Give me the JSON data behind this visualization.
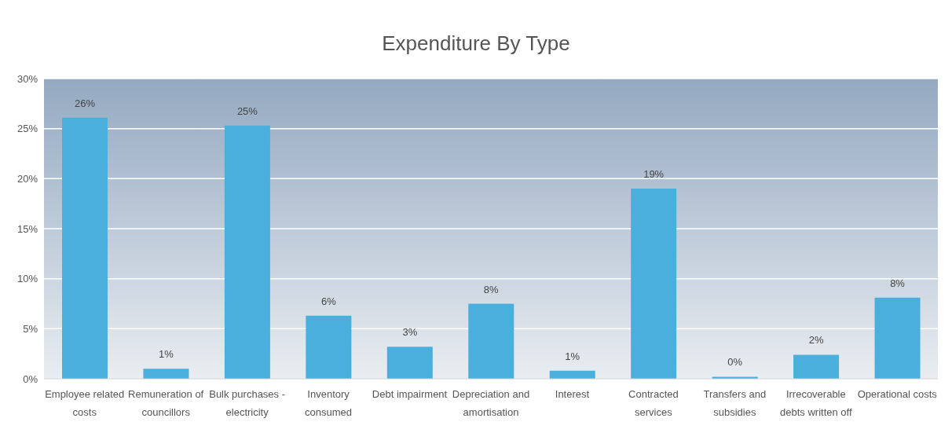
{
  "chart_data": {
    "type": "bar",
    "title": "Expenditure By Type",
    "categories": [
      "Employee related costs",
      "Remuneration of councillors",
      "Bulk purchases - electricity",
      "Inventory consumed",
      "Debt impairment",
      "Depreciation and amortisation",
      "Interest",
      "Contracted services",
      "Transfers and subsidies",
      "Irrecoverable debts written off",
      "Operational costs"
    ],
    "values": [
      26.1,
      1.0,
      25.3,
      6.3,
      3.2,
      7.5,
      0.8,
      19.0,
      0.2,
      2.4,
      8.1
    ],
    "value_labels": [
      "26%",
      "1%",
      "25%",
      "6%",
      "3%",
      "8%",
      "1%",
      "19%",
      "0%",
      "2%",
      "8%"
    ],
    "color": "#4aafdc",
    "ylim": [
      0,
      30
    ],
    "yticks": [
      {
        "value": 0,
        "label": "0%"
      },
      {
        "value": 5,
        "label": "5%"
      },
      {
        "value": 10,
        "label": "10%"
      },
      {
        "value": 15,
        "label": "15%"
      },
      {
        "value": 20,
        "label": "20%"
      },
      {
        "value": 25,
        "label": "25%"
      },
      {
        "value": 30,
        "label": "30%"
      }
    ],
    "grid": "y",
    "legend": false
  }
}
